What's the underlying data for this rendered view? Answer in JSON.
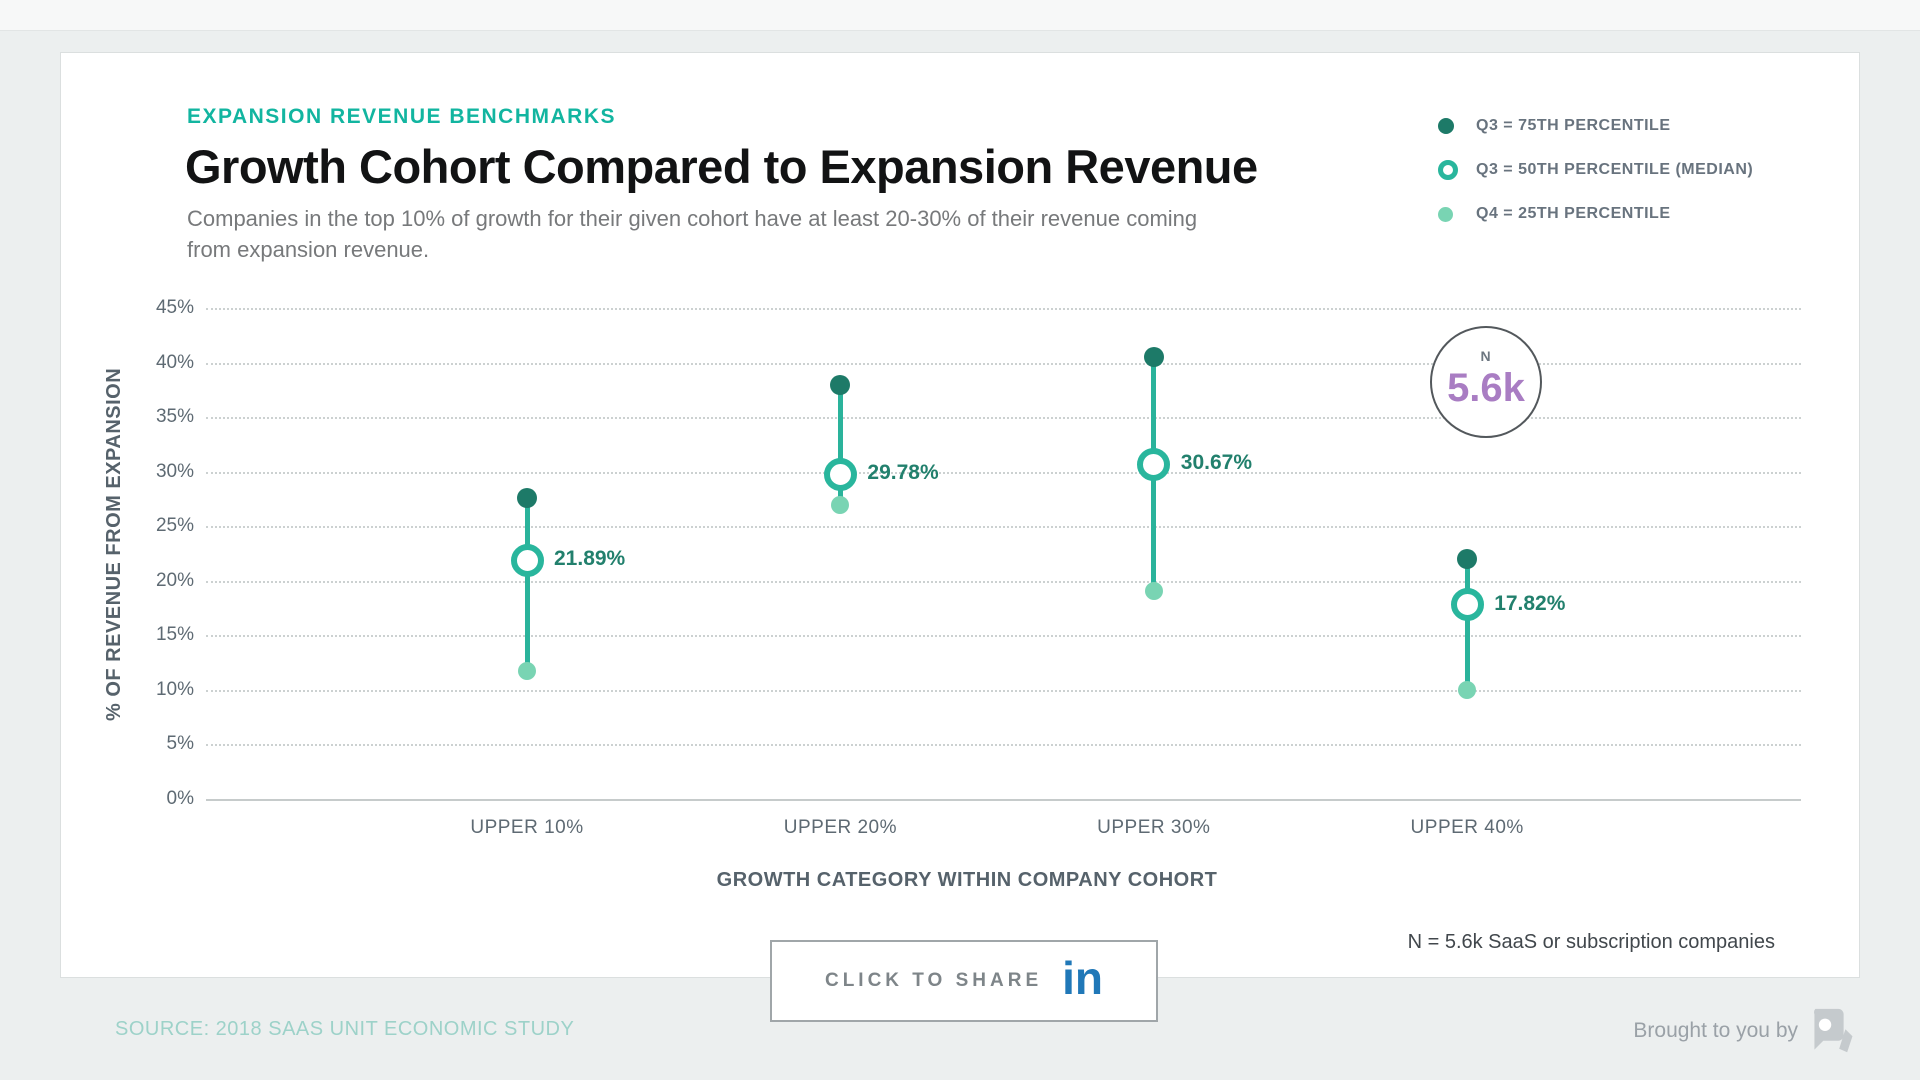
{
  "header": {
    "eyebrow": "EXPANSION REVENUE BENCHMARKS",
    "title": "Growth Cohort Compared to Expansion Revenue",
    "subtitle": "Companies in the top 10% of growth for their given cohort have at least 20-30% of their revenue coming\nfrom expansion revenue."
  },
  "legend": [
    {
      "marker": "filled-dark",
      "label": "Q3 = 75TH PERCENTILE"
    },
    {
      "marker": "ring",
      "label": "Q3 = 50TH PERCENTILE (MEDIAN)"
    },
    {
      "marker": "filled-light",
      "label": "Q4 = 25TH PERCENTILE"
    }
  ],
  "chart_data": {
    "type": "dumbbell-lollipop",
    "categories": [
      "UPPER 10%",
      "UPPER 20%",
      "UPPER 30%",
      "UPPER 40%"
    ],
    "series": [
      {
        "name": "Q3 = 75th percentile",
        "values": [
          27.6,
          37.9,
          40.5,
          22.0
        ]
      },
      {
        "name": "Q3 = 50th percentile (median)",
        "values": [
          21.89,
          29.78,
          30.67,
          17.82
        ],
        "labels": [
          "21.89%",
          "29.78%",
          "30.67%",
          "17.82%"
        ]
      },
      {
        "name": "Q4 = 25th percentile",
        "values": [
          11.7,
          26.9,
          19.1,
          10.0
        ]
      }
    ],
    "xlabel": "GROWTH CATEGORY WITHIN COMPANY COHORT",
    "ylabel": "% OF REVENUE FROM EXPANSION",
    "ylim": [
      0,
      45
    ],
    "ytick_step": 5,
    "ytick_suffix": "%",
    "grid": "dotted-horizontal",
    "legend_position": "top-right"
  },
  "annotation_circle": {
    "top": "N",
    "value": "5.6k"
  },
  "note": "N = 5.6k SaaS or subscription companies",
  "share": {
    "label": "CLICK TO SHARE",
    "icon_text": "in"
  },
  "footer": {
    "source": "SOURCE: 2018 SAAS UNIT ECONOMIC STUDY",
    "brought": "Brought to you by"
  },
  "colors": {
    "accent_teal": "#12b5a0",
    "line": "#2ab39b",
    "dot_75th": "#1d7a68",
    "dot_25th": "#79d4b3",
    "median_ring": "#29b69d",
    "value_label": "#22806d",
    "purple": "#a97dc3",
    "linkedin_blue": "#2078b8",
    "background": "#ecefef"
  }
}
